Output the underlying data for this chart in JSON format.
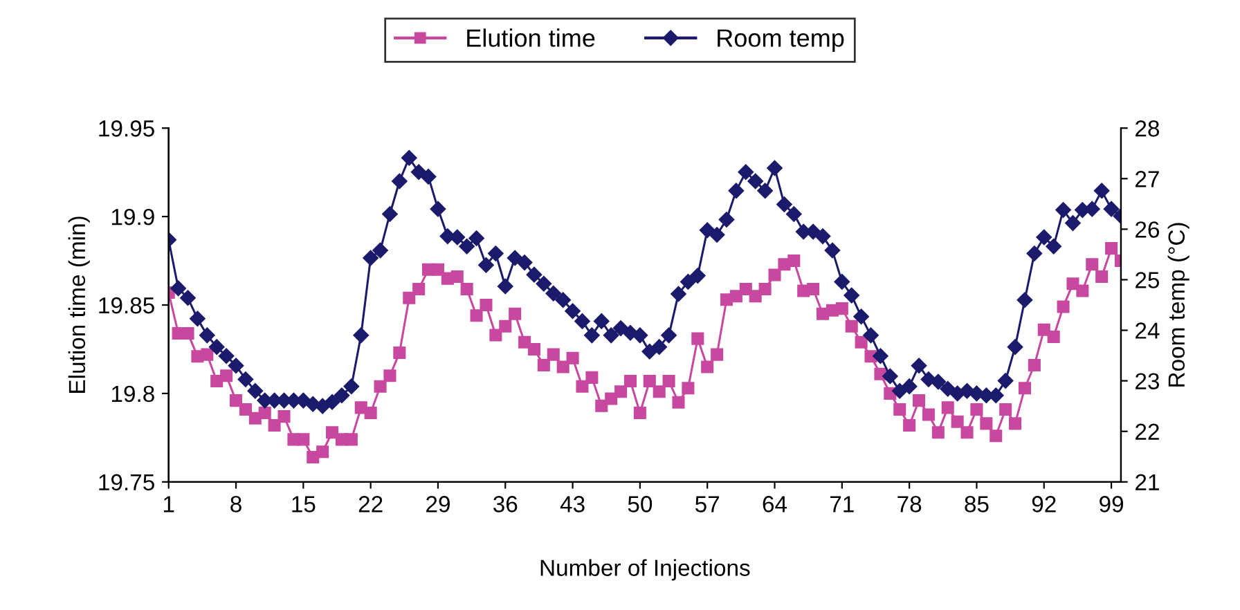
{
  "chart_data": {
    "type": "line",
    "xlabel": "Number of Injections",
    "ylabel": "Elution time (min)",
    "y2label": "Room temp (°C)",
    "x": [
      1,
      2,
      3,
      4,
      5,
      6,
      7,
      8,
      9,
      10,
      11,
      12,
      13,
      14,
      15,
      16,
      17,
      18,
      19,
      20,
      21,
      22,
      23,
      24,
      25,
      26,
      27,
      28,
      29,
      30,
      31,
      32,
      33,
      34,
      35,
      36,
      37,
      38,
      39,
      40,
      41,
      42,
      43,
      44,
      45,
      46,
      47,
      48,
      49,
      50,
      51,
      52,
      53,
      54,
      55,
      56,
      57,
      58,
      59,
      60,
      61,
      62,
      63,
      64,
      65,
      66,
      67,
      68,
      69,
      70,
      71,
      72,
      73,
      74,
      75,
      76,
      77,
      78,
      79,
      80,
      81,
      82,
      83,
      84,
      85,
      86,
      87,
      88,
      89,
      90,
      91,
      92,
      93,
      94,
      95,
      96,
      97,
      98,
      99,
      100
    ],
    "xlim": [
      1,
      100
    ],
    "xticks": [
      1,
      8,
      15,
      22,
      29,
      36,
      43,
      50,
      57,
      64,
      71,
      78,
      85,
      92,
      99
    ],
    "ylim": [
      19.75,
      19.95
    ],
    "yticks": [
      {
        "value": 19.75,
        "label": "19.75"
      },
      {
        "value": 19.8,
        "label": "19.8"
      },
      {
        "value": 19.85,
        "label": "19.85"
      },
      {
        "value": 19.9,
        "label": "19.9"
      },
      {
        "value": 19.95,
        "label": "19.95"
      }
    ],
    "y2lim": [
      21,
      28
    ],
    "y2ticks": [
      21,
      22,
      23,
      24,
      25,
      26,
      27,
      28
    ],
    "legend": "top",
    "grid": false,
    "line_style": "solid",
    "series": [
      {
        "name": "Elution time",
        "color": "#c9489f",
        "marker": "square",
        "values": [
          19.857,
          19.834,
          19.834,
          19.821,
          19.822,
          19.807,
          19.81,
          19.796,
          19.791,
          19.786,
          19.789,
          19.782,
          19.787,
          19.774,
          19.774,
          19.764,
          19.767,
          19.778,
          19.774,
          19.774,
          19.792,
          19.789,
          19.804,
          19.81,
          19.823,
          19.854,
          19.859,
          19.87,
          19.87,
          19.865,
          19.866,
          19.859,
          19.844,
          19.85,
          19.833,
          19.838,
          19.845,
          19.829,
          19.825,
          19.816,
          19.822,
          19.815,
          19.82,
          19.804,
          19.809,
          19.793,
          19.797,
          19.801,
          19.807,
          19.789,
          19.807,
          19.801,
          19.807,
          19.795,
          19.803,
          19.831,
          19.815,
          19.822,
          19.853,
          19.855,
          19.859,
          19.855,
          19.859,
          19.867,
          19.873,
          19.875,
          19.858,
          19.859,
          19.845,
          19.847,
          19.848,
          19.838,
          19.829,
          19.821,
          19.811,
          19.8,
          19.791,
          19.782,
          19.796,
          19.788,
          19.778,
          19.792,
          19.784,
          19.778,
          19.791,
          19.783,
          19.776,
          19.791,
          19.783,
          19.803,
          19.816,
          19.836,
          19.832,
          19.849,
          19.862,
          19.858,
          19.873,
          19.866,
          19.882,
          19.875
        ]
      },
      {
        "name": "Room temp",
        "color": "#1b1a6b",
        "marker": "diamond",
        "axis": "y2",
        "values": [
          25.79,
          24.83,
          24.64,
          24.23,
          23.9,
          23.67,
          23.49,
          23.3,
          23.03,
          22.8,
          22.61,
          22.61,
          22.61,
          22.61,
          22.61,
          22.54,
          22.5,
          22.58,
          22.71,
          22.89,
          23.9,
          25.43,
          25.58,
          26.3,
          26.95,
          27.41,
          27.13,
          27.04,
          26.4,
          25.86,
          25.84,
          25.66,
          25.82,
          25.29,
          25.52,
          24.87,
          25.43,
          25.34,
          25.1,
          24.92,
          24.73,
          24.6,
          24.38,
          24.18,
          23.9,
          24.18,
          23.9,
          24.04,
          23.95,
          23.9,
          23.58,
          23.67,
          23.9,
          24.72,
          24.96,
          25.08,
          25.98,
          25.89,
          26.19,
          26.76,
          27.13,
          26.95,
          26.76,
          27.21,
          26.49,
          26.3,
          25.95,
          25.95,
          25.86,
          25.58,
          24.96,
          24.69,
          24.27,
          23.9,
          23.49,
          23.09,
          22.8,
          22.89,
          23.3,
          23.03,
          22.98,
          22.84,
          22.75,
          22.8,
          22.75,
          22.71,
          22.71,
          23.0,
          23.67,
          24.6,
          25.52,
          25.84,
          25.66,
          26.38,
          26.12,
          26.38,
          26.4,
          26.76,
          26.4,
          26.26
        ]
      }
    ]
  }
}
